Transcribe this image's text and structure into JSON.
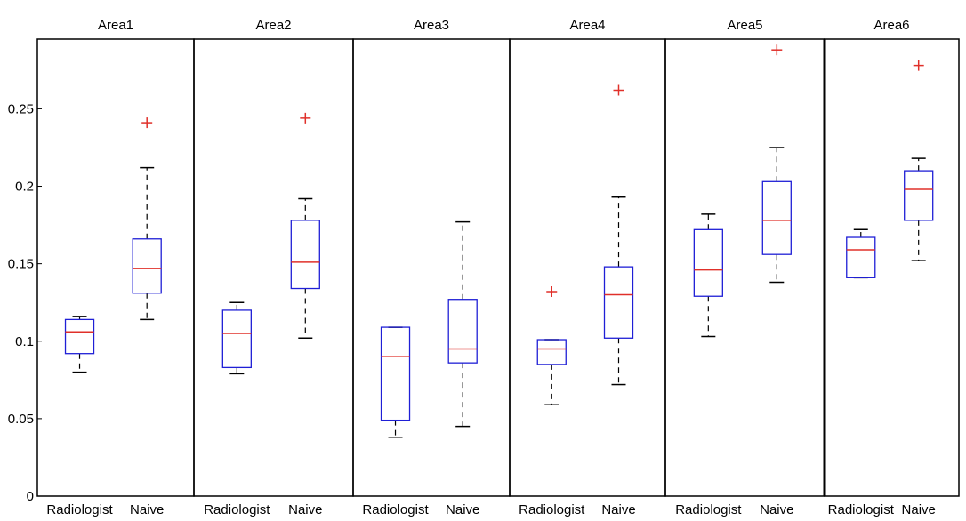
{
  "chart_data": {
    "type": "boxplot",
    "y_ticks": [
      "0",
      "0.05",
      "0.1",
      "0.15",
      "0.2",
      "0.25"
    ],
    "ylim": [
      0,
      0.295
    ],
    "grid": false,
    "colors": {
      "box": "#1f1fd6",
      "median": "#e0302a",
      "whisker": "#000000",
      "outlier": "#e0302a"
    },
    "groups": [
      {
        "title": "Area1",
        "boxes": [
          {
            "label": "Radiologist",
            "lower_whisker": 0.08,
            "q1": 0.092,
            "median": 0.106,
            "q3": 0.114,
            "upper_whisker": 0.116,
            "outliers": []
          },
          {
            "label": "Naive",
            "lower_whisker": 0.114,
            "q1": 0.131,
            "median": 0.147,
            "q3": 0.166,
            "upper_whisker": 0.212,
            "outliers": [
              0.241
            ]
          }
        ]
      },
      {
        "title": "Area2",
        "boxes": [
          {
            "label": "Radiologist",
            "lower_whisker": 0.079,
            "q1": 0.083,
            "median": 0.105,
            "q3": 0.12,
            "upper_whisker": 0.125,
            "outliers": []
          },
          {
            "label": "Naive",
            "lower_whisker": 0.102,
            "q1": 0.134,
            "median": 0.151,
            "q3": 0.178,
            "upper_whisker": 0.192,
            "outliers": [
              0.244
            ]
          }
        ]
      },
      {
        "title": "Area3",
        "boxes": [
          {
            "label": "Radiologist",
            "lower_whisker": 0.038,
            "q1": 0.049,
            "median": 0.09,
            "q3": 0.109,
            "upper_whisker": 0.109,
            "outliers": []
          },
          {
            "label": "Naive",
            "lower_whisker": 0.045,
            "q1": 0.086,
            "median": 0.095,
            "q3": 0.127,
            "upper_whisker": 0.177,
            "outliers": []
          }
        ]
      },
      {
        "title": "Area4",
        "boxes": [
          {
            "label": "Radiologist",
            "lower_whisker": 0.059,
            "q1": 0.085,
            "median": 0.095,
            "q3": 0.101,
            "upper_whisker": 0.101,
            "outliers": [
              0.132
            ]
          },
          {
            "label": "Naive",
            "lower_whisker": 0.072,
            "q1": 0.102,
            "median": 0.13,
            "q3": 0.148,
            "upper_whisker": 0.193,
            "outliers": [
              0.262
            ]
          }
        ]
      },
      {
        "title": "Area5",
        "boxes": [
          {
            "label": "Radiologist",
            "lower_whisker": 0.103,
            "q1": 0.129,
            "median": 0.146,
            "q3": 0.172,
            "upper_whisker": 0.182,
            "outliers": []
          },
          {
            "label": "Naive",
            "lower_whisker": 0.138,
            "q1": 0.156,
            "median": 0.178,
            "q3": 0.203,
            "upper_whisker": 0.225,
            "outliers": [
              0.288
            ]
          }
        ]
      },
      {
        "title": "Area6",
        "boxes": [
          {
            "label": "Radiologist",
            "lower_whisker": 0.141,
            "q1": 0.141,
            "median": 0.159,
            "q3": 0.167,
            "upper_whisker": 0.172,
            "outliers": []
          },
          {
            "label": "Naive",
            "lower_whisker": 0.152,
            "q1": 0.178,
            "median": 0.198,
            "q3": 0.21,
            "upper_whisker": 0.218,
            "outliers": [
              0.278
            ]
          }
        ]
      }
    ]
  }
}
